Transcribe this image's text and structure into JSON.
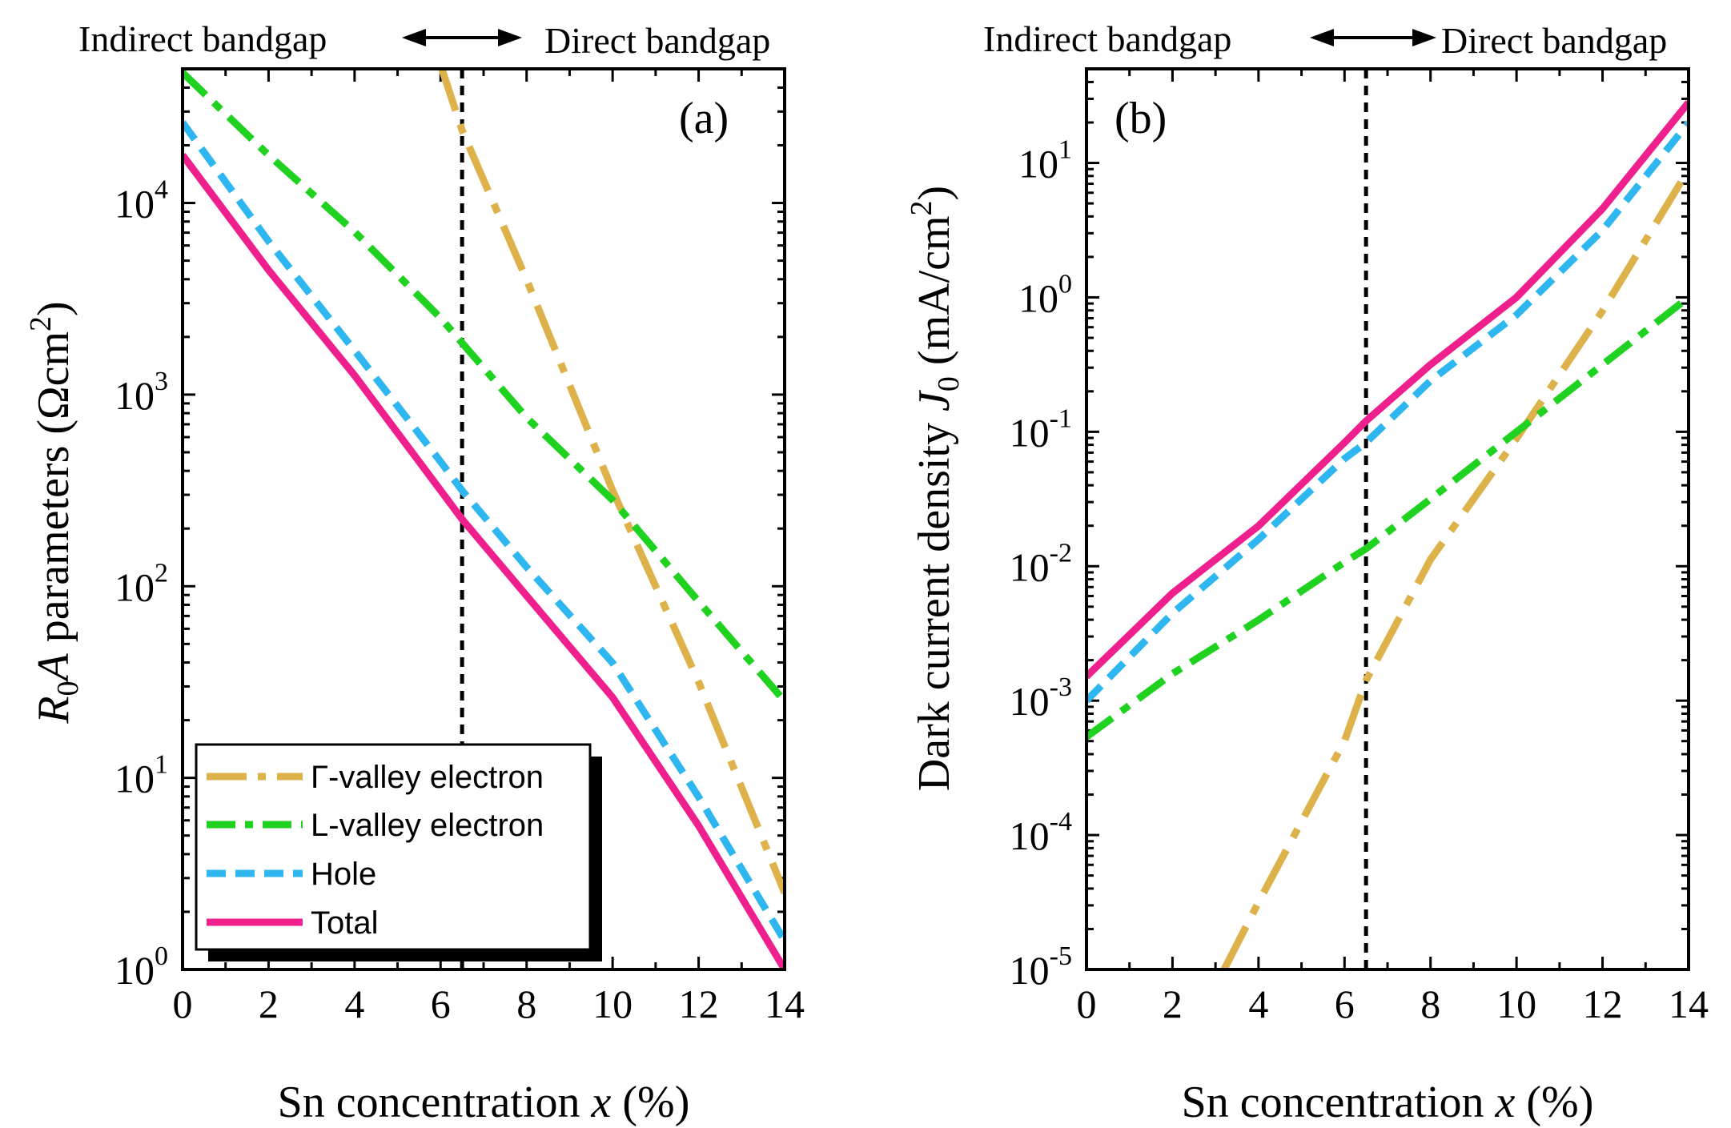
{
  "colors": {
    "gamma": "#DDB24A",
    "lvalley": "#1FD21F",
    "hole": "#2EB6F0",
    "total": "#F01F8E",
    "divider": "#000000"
  },
  "chart_data": [
    {
      "id": "a",
      "type": "line",
      "panel_label": "(a)",
      "xlabel": "Sn concentration x (%)",
      "ylabel": "R0A parameters (Ωcm²)",
      "xlim": [
        0,
        14
      ],
      "ylim_log10": [
        0,
        4.7
      ],
      "yscale": "log",
      "xticks": [
        "0",
        "2",
        "4",
        "6",
        "8",
        "10",
        "12",
        "14"
      ],
      "yticks": [
        {
          "base": "10",
          "exp": "0"
        },
        {
          "base": "10",
          "exp": "1"
        },
        {
          "base": "10",
          "exp": "2"
        },
        {
          "base": "10",
          "exp": "3"
        },
        {
          "base": "10",
          "exp": "4"
        }
      ],
      "divider_x": 6.5,
      "region_labels": {
        "left": "Indirect bandgap",
        "right": "Direct bandgap"
      },
      "legend": {
        "position": "bottom-left",
        "entries": [
          "Γ-valley electron",
          "L-valley electron",
          "Hole",
          "Total"
        ]
      },
      "series": [
        {
          "name": "Γ-valley electron",
          "key": "gamma",
          "x": [
            6,
            6.5,
            8,
            10,
            12,
            14
          ],
          "log10y": [
            4.72,
            4.38,
            3.6,
            2.5,
            1.5,
            0.4
          ]
        },
        {
          "name": "L-valley electron",
          "key": "lvalley",
          "x": [
            0,
            2,
            4,
            6,
            6.5,
            8,
            10,
            12,
            14
          ],
          "log10y": [
            4.68,
            4.25,
            3.85,
            3.4,
            3.27,
            2.88,
            2.45,
            1.92,
            1.4
          ]
        },
        {
          "name": "Hole",
          "key": "hole",
          "x": [
            0,
            2,
            4,
            6,
            6.5,
            8,
            10,
            12,
            14
          ],
          "log10y": [
            4.42,
            3.8,
            3.23,
            2.65,
            2.5,
            2.1,
            1.6,
            0.9,
            0.15
          ]
        },
        {
          "name": "Total",
          "key": "total",
          "x": [
            0,
            2,
            4,
            6,
            6.5,
            8,
            10,
            12,
            14
          ],
          "log10y": [
            4.25,
            3.65,
            3.1,
            2.5,
            2.35,
            1.95,
            1.42,
            0.75,
            0.0
          ]
        }
      ]
    },
    {
      "id": "b",
      "type": "line",
      "panel_label": "(b)",
      "xlabel": "Sn concentration x (%)",
      "ylabel": "Dark current density J0 (mA/cm²)",
      "xlim": [
        0,
        14
      ],
      "ylim_log10": [
        -5,
        1.7
      ],
      "yscale": "log",
      "xticks": [
        "0",
        "2",
        "4",
        "6",
        "8",
        "10",
        "12",
        "14"
      ],
      "yticks": [
        {
          "base": "10",
          "exp": "-5"
        },
        {
          "base": "10",
          "exp": "-4"
        },
        {
          "base": "10",
          "exp": "-3"
        },
        {
          "base": "10",
          "exp": "-2"
        },
        {
          "base": "10",
          "exp": "-1"
        },
        {
          "base": "10",
          "exp": "0"
        },
        {
          "base": "10",
          "exp": "1"
        }
      ],
      "divider_x": 6.5,
      "region_labels": {
        "left": "Indirect bandgap",
        "right": "Direct bandgap"
      },
      "series": [
        {
          "name": "Γ-valley electron",
          "key": "gamma",
          "x": [
            3.2,
            4,
            6,
            6.5,
            8,
            10,
            12,
            14
          ],
          "log10y": [
            -5.0,
            -4.5,
            -3.3,
            -2.85,
            -1.95,
            -1.05,
            -0.1,
            0.95
          ]
        },
        {
          "name": "L-valley electron",
          "key": "lvalley",
          "x": [
            0,
            2,
            4,
            6,
            6.5,
            8,
            10,
            12,
            14
          ],
          "log10y": [
            -3.27,
            -2.8,
            -2.4,
            -1.97,
            -1.87,
            -1.5,
            -1.0,
            -0.5,
            0.0
          ]
        },
        {
          "name": "Hole",
          "key": "hole",
          "x": [
            0,
            2,
            4,
            6,
            6.5,
            8,
            10,
            12,
            14
          ],
          "log10y": [
            -3.0,
            -2.35,
            -1.8,
            -1.2,
            -1.08,
            -0.62,
            -0.13,
            0.5,
            1.3
          ]
        },
        {
          "name": "Total",
          "key": "total",
          "x": [
            0,
            2,
            4,
            6,
            6.5,
            8,
            10,
            12,
            14
          ],
          "log10y": [
            -2.82,
            -2.2,
            -1.7,
            -1.08,
            -0.92,
            -0.5,
            0.0,
            0.66,
            1.45
          ]
        }
      ]
    }
  ]
}
